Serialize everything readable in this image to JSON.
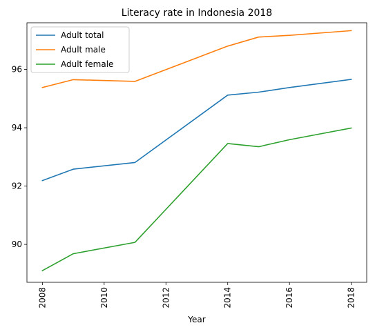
{
  "chart_data": {
    "type": "line",
    "title": "Literacy rate in Indonesia 2018",
    "xlabel": "Year",
    "ylabel": "",
    "x": [
      2008,
      2009,
      2011,
      2014,
      2015,
      2016,
      2018
    ],
    "xlim": [
      2007.5,
      2018.5
    ],
    "ylim": [
      88.7,
      97.6
    ],
    "xticks": [
      2008,
      2010,
      2012,
      2014,
      2016,
      2018
    ],
    "yticks": [
      90,
      92,
      94,
      96
    ],
    "grid": false,
    "legend_position": "top-left",
    "series": [
      {
        "name": "Adult total",
        "color": "#1f77b4",
        "values": [
          92.19,
          92.58,
          92.81,
          95.12,
          95.22,
          95.38,
          95.66
        ]
      },
      {
        "name": "Adult male",
        "color": "#ff7f0e",
        "values": [
          95.38,
          95.65,
          95.59,
          96.8,
          97.11,
          97.17,
          97.33
        ]
      },
      {
        "name": "Adult female",
        "color": "#2ca02c",
        "values": [
          89.1,
          89.68,
          90.07,
          93.46,
          93.35,
          93.59,
          93.99
        ]
      }
    ]
  }
}
